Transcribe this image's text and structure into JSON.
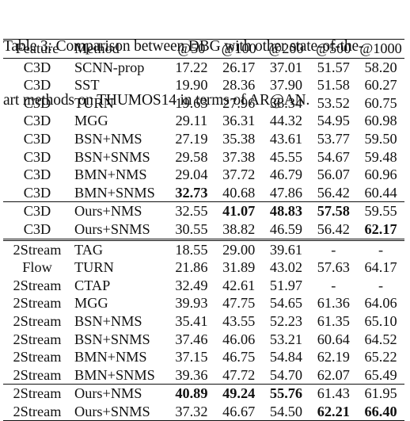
{
  "caption": {
    "line1": "Table 3: Comparison between DBG with other state-of-the-",
    "line2": "art methods on THUMOS14 in terms of AR@AN."
  },
  "header": [
    "Feature",
    "Method",
    "@50",
    "@100",
    "@200",
    "@500",
    "@1000"
  ],
  "groups": [
    {
      "rows": [
        {
          "feature": "C3D",
          "method": "SCNN-prop",
          "values": [
            "17.22",
            "26.17",
            "37.01",
            "51.57",
            "58.20"
          ],
          "bold": []
        },
        {
          "feature": "C3D",
          "method": "SST",
          "values": [
            "19.90",
            "28.36",
            "37.90",
            "51.58",
            "60.27"
          ],
          "bold": []
        },
        {
          "feature": "C3D",
          "method": "TURN",
          "values": [
            "19.63",
            "27.96",
            "38.34",
            "53.52",
            "60.75"
          ],
          "bold": []
        },
        {
          "feature": "C3D",
          "method": "MGG",
          "values": [
            "29.11",
            "36.31",
            "44.32",
            "54.95",
            "60.98"
          ],
          "bold": []
        },
        {
          "feature": "C3D",
          "method": "BSN+NMS",
          "values": [
            "27.19",
            "35.38",
            "43.61",
            "53.77",
            "59.50"
          ],
          "bold": []
        },
        {
          "feature": "C3D",
          "method": "BSN+SNMS",
          "values": [
            "29.58",
            "37.38",
            "45.55",
            "54.67",
            "59.48"
          ],
          "bold": []
        },
        {
          "feature": "C3D",
          "method": "BMN+NMS",
          "values": [
            "29.04",
            "37.72",
            "46.79",
            "56.07",
            "60.96"
          ],
          "bold": []
        },
        {
          "feature": "C3D",
          "method": "BMN+SNMS",
          "values": [
            "32.73",
            "40.68",
            "47.86",
            "56.42",
            "60.44"
          ],
          "bold": [
            0
          ]
        }
      ]
    },
    {
      "rows": [
        {
          "feature": "C3D",
          "method": "Ours+NMS",
          "values": [
            "32.55",
            "41.07",
            "48.83",
            "57.58",
            "59.55"
          ],
          "bold": [
            1,
            2,
            3
          ]
        },
        {
          "feature": "C3D",
          "method": "Ours+SNMS",
          "values": [
            "30.55",
            "38.82",
            "46.59",
            "56.42",
            "62.17"
          ],
          "bold": [
            4
          ]
        }
      ]
    },
    {
      "rows": [
        {
          "feature": "2Stream",
          "method": "TAG",
          "values": [
            "18.55",
            "29.00",
            "39.61",
            "-",
            "-"
          ],
          "bold": []
        },
        {
          "feature": "Flow",
          "method": "TURN",
          "values": [
            "21.86",
            "31.89",
            "43.02",
            "57.63",
            "64.17"
          ],
          "bold": []
        },
        {
          "feature": "2Stream",
          "method": "CTAP",
          "values": [
            "32.49",
            "42.61",
            "51.97",
            "-",
            "-"
          ],
          "bold": []
        },
        {
          "feature": "2Stream",
          "method": "MGG",
          "values": [
            "39.93",
            "47.75",
            "54.65",
            "61.36",
            "64.06"
          ],
          "bold": []
        },
        {
          "feature": "2Stream",
          "method": "BSN+NMS",
          "values": [
            "35.41",
            "43.55",
            "52.23",
            "61.35",
            "65.10"
          ],
          "bold": []
        },
        {
          "feature": "2Stream",
          "method": "BSN+SNMS",
          "values": [
            "37.46",
            "46.06",
            "53.21",
            "60.64",
            "64.52"
          ],
          "bold": []
        },
        {
          "feature": "2Stream",
          "method": "BMN+NMS",
          "values": [
            "37.15",
            "46.75",
            "54.84",
            "62.19",
            "65.22"
          ],
          "bold": []
        },
        {
          "feature": "2Stream",
          "method": "BMN+SNMS",
          "values": [
            "39.36",
            "47.72",
            "54.70",
            "62.07",
            "65.49"
          ],
          "bold": []
        }
      ]
    },
    {
      "rows": [
        {
          "feature": "2Stream",
          "method": "Ours+NMS",
          "values": [
            "40.89",
            "49.24",
            "55.76",
            "61.43",
            "61.95"
          ],
          "bold": [
            0,
            1,
            2
          ]
        },
        {
          "feature": "2Stream",
          "method": "Ours+SNMS",
          "values": [
            "37.32",
            "46.67",
            "54.50",
            "62.21",
            "66.40"
          ],
          "bold": [
            3,
            4
          ]
        }
      ]
    }
  ]
}
